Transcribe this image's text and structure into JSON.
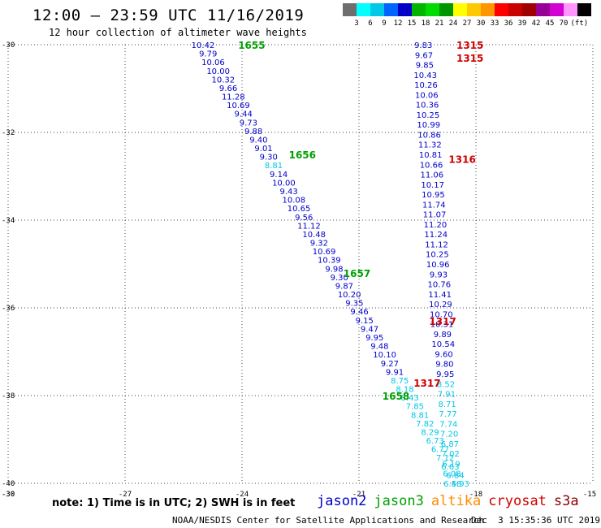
{
  "header": {
    "title": "12:00 – 23:59 UTC 11/16/2019",
    "subtitle": "12 hour collection of altimeter wave heights"
  },
  "scale": {
    "colors": [
      "#6e6e6e",
      "#00ffff",
      "#00c8e6",
      "#0064ff",
      "#0000c8",
      "#00b400",
      "#00dc00",
      "#009600",
      "#ffff00",
      "#ffc800",
      "#ff9600",
      "#ff0000",
      "#c80000",
      "#a00000",
      "#960096",
      "#d200d2",
      "#ff96ff",
      "#000000"
    ],
    "labels": [
      "3",
      "6",
      "9",
      "12",
      "15",
      "18",
      "21",
      "24",
      "27",
      "30",
      "33",
      "36",
      "39",
      "42",
      "45",
      "70",
      "(ft)"
    ],
    "bin_colors": {
      "6-9": "#00c8e6",
      "9-12": "#0000c8"
    }
  },
  "footer": {
    "note": "note: 1) Time is in UTC; 2) SWH is in feet",
    "satellites": [
      {
        "name": "jason2",
        "color": "#0000c8"
      },
      {
        "name": "jason3",
        "color": "#00a000"
      },
      {
        "name": "altika",
        "color": "#ff8c00"
      },
      {
        "name": "cryosat",
        "color": "#d00000"
      },
      {
        "name": "s3a",
        "color": "#8b0000"
      }
    ],
    "credit": "NOAA/NESDIS Center for Satellite Applications and Research",
    "timestamp": "Dec  3 15:35:36 UTC 2019"
  },
  "chart_data": {
    "type": "scatter",
    "xlim": [
      -30,
      -15
    ],
    "ylim": [
      -40,
      -30
    ],
    "x_ticks": [
      "-30",
      "-27",
      "-24",
      "-21",
      "-18",
      "-15"
    ],
    "y_ticks": [
      "-30",
      "-32",
      "-34",
      "-36",
      "-38",
      "-40"
    ],
    "grid": true,
    "tracks": [
      {
        "lat_start": -30.0,
        "lon_start": -25.0,
        "lat_end": -40.0,
        "lon_end": -18.4,
        "values": [
          "10.42",
          "9.79",
          "10.06",
          "10.00",
          "10.32",
          "9.66",
          "11.28",
          "10.69",
          "9.44",
          "9.73",
          "9.88",
          "9.40",
          "9.01",
          "9.30",
          "8.81",
          "9.14",
          "10.00",
          "9.43",
          "10.08",
          "10.65",
          "9.56",
          "11.12",
          "10.48",
          "9.32",
          "10.69",
          "10.39",
          "9.98",
          "9.30",
          "9.87",
          "10.20",
          "9.35",
          "9.46",
          "9.15",
          "9.47",
          "9.95",
          "9.48",
          "10.10",
          "9.27",
          "9.91",
          "8.75",
          "8.18",
          "8.43",
          "7.85",
          "8.81",
          "7.82",
          "8.29",
          "6.73",
          "6.77",
          "7.12",
          "6.63",
          "6.84",
          "5.93"
        ]
      },
      {
        "lat_start": -30.0,
        "lon_start": -19.35,
        "lat_end": -40.0,
        "lon_end": -18.6,
        "values": [
          "9.83",
          "9.67",
          "9.85",
          "10.43",
          "10.26",
          "10.06",
          "10.36",
          "10.25",
          "10.99",
          "10.86",
          "11.32",
          "10.81",
          "10.66",
          "11.06",
          "10.17",
          "10.95",
          "11.74",
          "11.07",
          "11.20",
          "11.24",
          "11.12",
          "10.25",
          "10.96",
          "9.93",
          "10.76",
          "11.41",
          "10.29",
          "10.70",
          "10.31",
          "9.89",
          "10.54",
          "9.60",
          "9.80",
          "9.95",
          "8.52",
          "7.91",
          "8.71",
          "7.77",
          "7.74",
          "7.20",
          "6.87",
          "7.02",
          "6.19",
          "6.08",
          "6.48"
        ]
      }
    ],
    "time_labels": [
      {
        "text": "1655",
        "color": "#00a000",
        "lat": -30.0,
        "lon": -24.1
      },
      {
        "text": "1656",
        "color": "#00a000",
        "lat": -32.5,
        "lon": -22.8
      },
      {
        "text": "1657",
        "color": "#00a000",
        "lat": -35.2,
        "lon": -21.4
      },
      {
        "text": "1658",
        "color": "#00a000",
        "lat": -38.0,
        "lon": -20.4
      },
      {
        "text": "1315",
        "color": "#d00000",
        "lat": -30.0,
        "lon": -18.5
      },
      {
        "text": "1315",
        "color": "#d00000",
        "lat": -30.3,
        "lon": -18.5
      },
      {
        "text": "1316",
        "color": "#d00000",
        "lat": -32.6,
        "lon": -18.7
      },
      {
        "text": "1317",
        "color": "#d00000",
        "lat": -36.3,
        "lon": -19.2
      },
      {
        "text": "1317",
        "color": "#d00000",
        "lat": -37.7,
        "lon": -19.6
      }
    ]
  }
}
